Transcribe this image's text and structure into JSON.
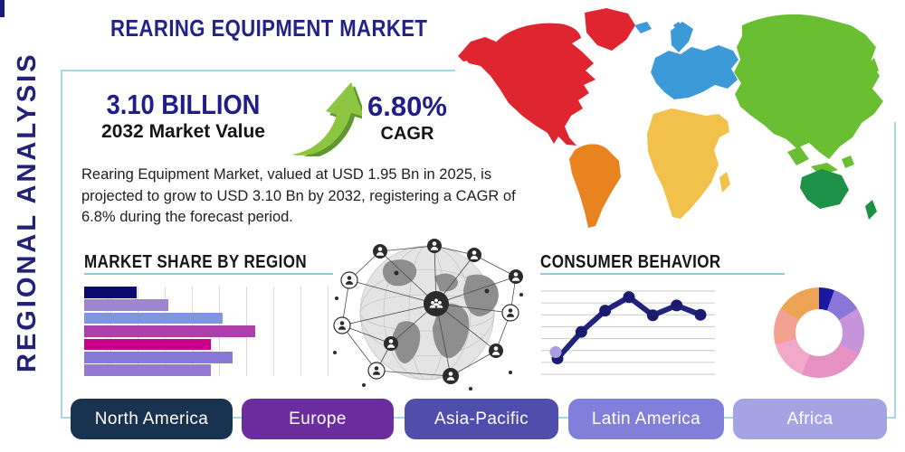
{
  "title": "REARING EQUIPMENT MARKET",
  "side_label": "REGIONAL ANALYSIS",
  "stats": {
    "market_value": "3.10 BILLION",
    "market_value_label": "2032 Market Value",
    "cagr_value": "6.80%",
    "cagr_label": "CAGR"
  },
  "description": "Rearing Equipment Market, valued at USD 1.95 Bn in 2025, is projected to grow to USD 3.10 Bn by 2032, registering a CAGR of 6.8% during the forecast period.",
  "icons": {
    "growth_arrow": "curved-up-right-green-arrow",
    "globe_network": "global-people-network-graphic"
  },
  "accent_colors": {
    "frame_border": "#a9d6e5",
    "section_underline": "#8fcadd",
    "heading_navy": "#232288",
    "arrow_green": "#8cc540",
    "arrow_green_dark": "#5f9630"
  },
  "map_colors": {
    "north_america": "#df2530",
    "greenland": "#df2530",
    "south_america": "#e8831f",
    "europe": "#3d9ad8",
    "africa": "#f2c14b",
    "asia": "#6abe31",
    "australia": "#1d9145"
  },
  "region_buttons": [
    {
      "label": "North America",
      "color": "#183250"
    },
    {
      "label": "Europe",
      "color": "#6b2d9e"
    },
    {
      "label": "Asia-Pacific",
      "color": "#504ead"
    },
    {
      "label": "Latin America",
      "color": "#807fd9"
    },
    {
      "label": "Africa",
      "color": "#a5a3e2"
    }
  ],
  "chart_data": [
    {
      "type": "bar",
      "orientation": "horizontal",
      "title": "MARKET SHARE BY REGION",
      "values": [
        21,
        34,
        56,
        69,
        51,
        60,
        51
      ],
      "value_unit": "percent-of-axis",
      "bar_colors": [
        "#0a0a70",
        "#9c86d2",
        "#7e96e0",
        "#ae3faa",
        "#cc0088",
        "#8878d8",
        "#9579d2"
      ],
      "grid": true,
      "axis_labels_visible": false
    },
    {
      "type": "line",
      "title": "CONSUMER BEHAVIOR",
      "x": [
        1,
        2,
        3,
        4,
        5,
        6,
        7
      ],
      "y": [
        1.0,
        3.55,
        5.6,
        6.9,
        5.15,
        6.1,
        5.2
      ],
      "ylim": [
        0,
        8
      ],
      "gridlines": 8,
      "line_color": "#23227d",
      "marker_color": "#1a1a6e",
      "first_marker_accent": "#a89fe2",
      "axis_labels_visible": false
    },
    {
      "type": "pie",
      "donut": true,
      "values": [
        5.5,
        10.5,
        16.7,
        23.6,
        14.4,
        13.3,
        16.0
      ],
      "colors": [
        "#1a18a0",
        "#8976d8",
        "#c794dc",
        "#e591c4",
        "#f2a9c9",
        "#f2a191",
        "#eca353"
      ],
      "start_angle": "top",
      "labels_visible": false
    }
  ]
}
